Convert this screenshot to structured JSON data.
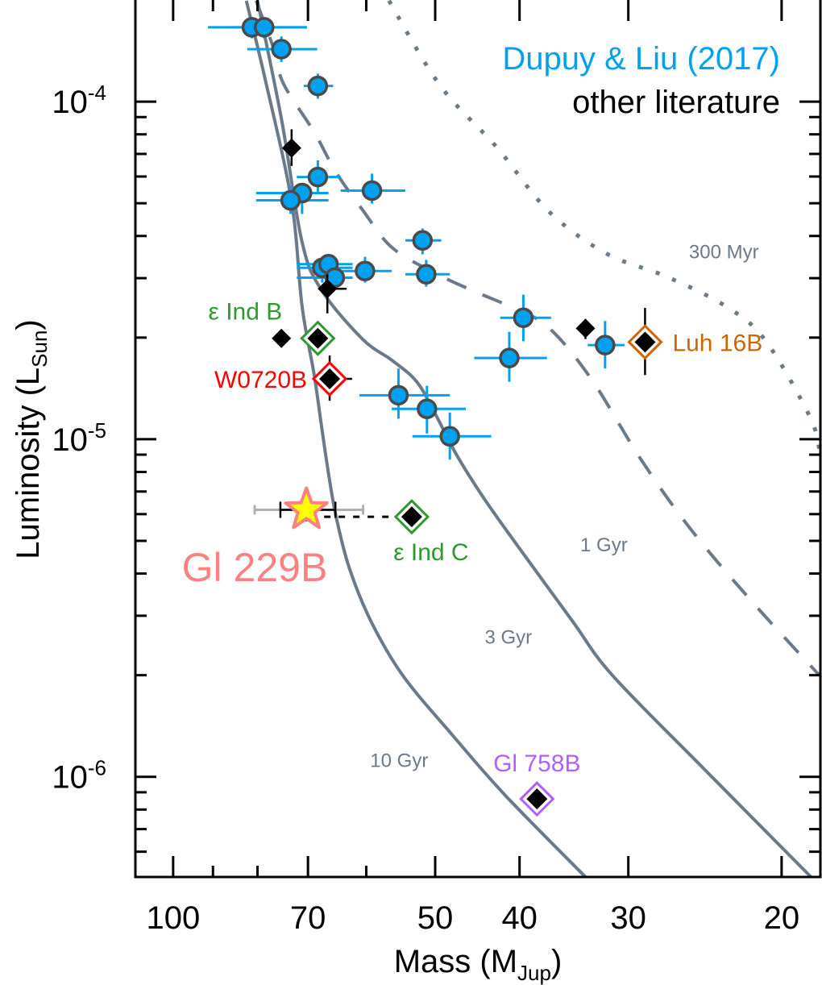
{
  "chart_data": {
    "type": "scatter",
    "xlabel": "Mass (M",
    "xlabel_sub": "Jup",
    "xlabel_end": ")",
    "ylabel": "Luminosity (L",
    "ylabel_sub": "Sun",
    "ylabel_end": ")",
    "x_scale": "log",
    "y_scale": "log",
    "x_reversed": true,
    "xlim": [
      110.5,
      18.05
    ],
    "ylim": [
      5.05e-07,
      0.0002
    ],
    "grid": false,
    "x_ticks_major": [
      {
        "value": 100,
        "label": "100"
      },
      {
        "value": 70,
        "label": "70"
      },
      {
        "value": 50,
        "label": "50"
      },
      {
        "value": 40,
        "label": "40"
      },
      {
        "value": 30,
        "label": "30"
      },
      {
        "value": 20,
        "label": "20"
      }
    ],
    "x_ticks_minor": [
      90,
      80,
      60
    ],
    "y_ticks_major": [
      {
        "value": 0.0001,
        "base": "10",
        "exp": "-4"
      },
      {
        "value": 1e-05,
        "base": "10",
        "exp": "-5"
      },
      {
        "value": 1e-06,
        "base": "10",
        "exp": "-6"
      }
    ],
    "y_ticks_minor": [
      9e-05,
      8e-05,
      7e-05,
      6e-05,
      5e-05,
      4e-05,
      3e-05,
      2e-05,
      9e-06,
      8e-06,
      7e-06,
      6e-06,
      5e-06,
      4e-06,
      3e-06,
      2e-06,
      9e-07,
      8e-07,
      7e-07,
      6e-07
    ],
    "legend": {
      "placement": "top-right",
      "entries": [
        {
          "label": "Dupuy & Liu (2017)",
          "color": "#00a2f0"
        },
        {
          "label": "other literature",
          "color": "#000000"
        }
      ]
    },
    "isochrones": [
      {
        "name": "10 Gyr",
        "style": "solid",
        "color": "#6b7a88",
        "label_at": [
          55,
          1.07e-06
        ],
        "points": [
          [
            82.4,
            0.000199
          ],
          [
            78.3,
            0.000115
          ],
          [
            73.1,
            5.05e-05
          ],
          [
            71.1,
            2.47e-05
          ],
          [
            68.9,
            1.565e-05
          ],
          [
            67.5,
            1.083e-05
          ],
          [
            66.3,
            7.92e-06
          ],
          [
            65.0,
            5.92e-06
          ],
          [
            62.8,
            4.18e-06
          ],
          [
            59.3,
            2.9e-06
          ],
          [
            54.5,
            2e-06
          ],
          [
            47.9,
            1.34e-06
          ],
          [
            41.5,
            8.79e-07
          ],
          [
            33.6,
            5.05e-07
          ]
        ]
      },
      {
        "name": "3 Gyr",
        "style": "solid",
        "color": "#6b7a88",
        "label_at": [
          41.2,
          2.48e-06
        ],
        "points": [
          [
            80.0,
            0.000199
          ],
          [
            75.0,
            8.74e-05
          ],
          [
            71.1,
            3.83e-05
          ],
          [
            67.5,
            2.76e-05
          ],
          [
            60.6,
            1.98e-05
          ],
          [
            56.0,
            1.71e-05
          ],
          [
            52.5,
            1.48e-05
          ],
          [
            50.0,
            1.19e-05
          ],
          [
            47.3,
            9.03e-06
          ],
          [
            44.0,
            6.71e-06
          ],
          [
            40.2,
            4.83e-06
          ],
          [
            34.8,
            2.9e-06
          ],
          [
            31.3,
            2e-06
          ],
          [
            24.6,
            1.06e-06
          ],
          [
            18.5,
            5.05e-07
          ]
        ]
      },
      {
        "name": "1 Gyr",
        "style": "dashed",
        "color": "#6b7a88",
        "label_at": [
          32.0,
          4.65e-06
        ],
        "points": [
          [
            80.3,
            0.000199
          ],
          [
            76.6,
            0.000143
          ],
          [
            74.7,
            0.000113
          ],
          [
            68.9,
            8.14e-05
          ],
          [
            65.0,
            6.18e-05
          ],
          [
            60.6,
            4.78e-05
          ],
          [
            56.0,
            3.69e-05
          ],
          [
            49.7,
            3.08e-05
          ],
          [
            44.9,
            2.73e-05
          ],
          [
            41.0,
            2.47e-05
          ],
          [
            37.1,
            2.15e-05
          ],
          [
            33.1,
            1.51e-05
          ],
          [
            29.0,
            8.69e-06
          ],
          [
            25.4,
            5.39e-06
          ],
          [
            21.6,
            3.29e-06
          ],
          [
            18.1,
            2e-06
          ]
        ]
      },
      {
        "name": "300 Myr",
        "style": "dotted",
        "color": "#6b7a88",
        "label_at": [
          23.3,
          3.43e-05
        ],
        "points": [
          [
            56.5,
            0.000199
          ],
          [
            49.4,
            0.000112
          ],
          [
            42.5,
            7.33e-05
          ],
          [
            37.0,
            4.72e-05
          ],
          [
            31.8,
            3.55e-05
          ],
          [
            27.1,
            3.03e-05
          ],
          [
            23.2,
            2.48e-05
          ],
          [
            20.9,
            1.97e-05
          ],
          [
            18.6,
            1.18e-05
          ],
          [
            18.1,
            9.39e-06
          ]
        ]
      }
    ],
    "series": [
      {
        "name": "Dupuy & Liu (2017)",
        "marker": "circle",
        "color": "#00a2f0",
        "edge_color": "#4a4a4a",
        "points": [
          {
            "mass": 81.2,
            "lum": 0.000166,
            "mass_err": [
              91.2,
              70.2
            ],
            "lum_err": [
              0.000178,
              0.000154
            ]
          },
          {
            "mass": 78.6,
            "lum": 0.000166,
            "mass_err": [
              85.2,
              70.2
            ],
            "lum_err": [
              0.000178,
              0.000154
            ]
          },
          {
            "mass": 75.1,
            "lum": 0.000143,
            "mass_err": [
              82.2,
              68.3
            ],
            "lum_err": [
              0.000156,
              0.000131
            ]
          },
          {
            "mass": 68.2,
            "lum": 0.0001113,
            "mass_err": [
              70.8,
              65.5
            ],
            "lum_err": [
              0.000121,
              0.000102
            ]
          },
          {
            "mass": 68.2,
            "lum": 5.98e-05,
            "mass_err": [
              72.1,
              64.2
            ],
            "lum_err": [
              6.7e-05,
              5.33e-05
            ]
          },
          {
            "mass": 71.1,
            "lum": 5.36e-05,
            "mass_err": [
              80.3,
              66.3
            ],
            "lum_err": [
              5.63e-05,
              4.65e-05
            ]
          },
          {
            "mass": 73.3,
            "lum": 5.1e-05,
            "mass_err": [
              80.3,
              66.3
            ],
            "lum_err": [
              5.63e-05,
              4.65e-05
            ]
          },
          {
            "mass": 59.1,
            "lum": 5.45e-05,
            "mass_err": [
              64.2,
              54.1
            ],
            "lum_err": [
              6.12e-05,
              4.99e-05
            ]
          },
          {
            "mass": 51.7,
            "lum": 3.88e-05,
            "mass_err": [
              54.1,
              49.2
            ],
            "lum_err": [
              4.21e-05,
              3.53e-05
            ]
          },
          {
            "mass": 67.4,
            "lum": 3.22e-05,
            "mass_err": [
              72.1,
              62.2
            ],
            "lum_err": [
              3.47e-05,
              2.91e-05
            ]
          },
          {
            "mass": 66.3,
            "lum": 3.3e-05,
            "mass_err": [
              72.1,
              62.2
            ],
            "lum_err": [
              3.53e-05,
              3.08e-05
            ]
          },
          {
            "mass": 65.2,
            "lum": 3.01e-05,
            "mass_err": [
              72.1,
              62.2
            ],
            "lum_err": [
              3.3e-05,
              2.83e-05
            ]
          },
          {
            "mass": 60.2,
            "lum": 3.15e-05,
            "mass_err": [
              64.6,
              56.1
            ],
            "lum_err": [
              3.47e-05,
              2.91e-05
            ]
          },
          {
            "mass": 51.2,
            "lum": 3.08e-05,
            "mass_err": [
              54.1,
              48.1
            ],
            "lum_err": [
              3.4e-05,
              2.83e-05
            ]
          },
          {
            "mass": 39.6,
            "lum": 2.29e-05,
            "mass_err": [
              42.1,
              36.8
            ],
            "lum_err": [
              2.68e-05,
              1.95e-05
            ]
          },
          {
            "mass": 41.1,
            "lum": 1.74e-05,
            "mass_err": [
              45.1,
              37.2
            ],
            "lum_err": [
              2.08e-05,
              1.48e-05
            ]
          },
          {
            "mass": 31.9,
            "lum": 1.9e-05,
            "mass_err": [
              33.4,
              30.3
            ],
            "lum_err": [
              2.24e-05,
              1.62e-05
            ]
          },
          {
            "mass": 55.1,
            "lum": 1.35e-05,
            "mass_err": [
              61.1,
              48.1
            ],
            "lum_err": [
              1.62e-05,
              1.15e-05
            ]
          },
          {
            "mass": 51.1,
            "lum": 1.23e-05,
            "mass_err": [
              56.1,
              46.1
            ],
            "lum_err": [
              1.44e-05,
              1.04e-05
            ]
          },
          {
            "mass": 48.1,
            "lum": 1.02e-05,
            "mass_err": [
              53.1,
              43.1
            ],
            "lum_err": [
              1.2e-05,
              8.7e-06
            ]
          }
        ]
      },
      {
        "name": "other literature",
        "marker": "diamond",
        "color": "#000000",
        "points": [
          {
            "mass": 73.1,
            "lum": 7.29e-05,
            "lum_err": [
              8.28e-05,
              6.45e-05
            ]
          },
          {
            "mass": 66.5,
            "lum": 2.79e-05,
            "mass_err": [
              68.1,
              63.2
            ],
            "lum_err": [
              3.08e-05,
              2.36e-05
            ]
          },
          {
            "mass": 75.1,
            "lum": 1.99e-05
          },
          {
            "mass": 33.6,
            "lum": 2.13e-05,
            "lum_err": [
              2.27e-05,
              1.98e-05
            ]
          },
          {
            "mass": 70.3,
            "lum": 5.89e-06,
            "small": true
          }
        ]
      }
    ],
    "named_objects": [
      {
        "name": "ε Ind B",
        "mass": 68.2,
        "lum": 1.99e-05,
        "color": "#2e9a2e",
        "mass_err": [
          71.4,
          68.2
        ],
        "label_pos": "above-left"
      },
      {
        "name": "W0720B",
        "mass": 66.1,
        "lum": 1.51e-05,
        "color": "#ff0000",
        "mass_err": [
          69.2,
          62.3
        ],
        "lum_err": [
          1.77e-05,
          1.3e-05
        ],
        "label_pos": "left"
      },
      {
        "name": "Luh 16B",
        "mass": 28.7,
        "lum": 1.94e-05,
        "color": "#cc6600",
        "lum_err": [
          2.45e-05,
          1.55e-05
        ],
        "label_pos": "right"
      },
      {
        "name": "ε Ind C",
        "mass": 53.2,
        "lum": 5.89e-06,
        "color": "#2e9a2e",
        "label_pos": "below"
      },
      {
        "name": "Gl 758B",
        "mass": 38.2,
        "lum": 8.6e-07,
        "color": "#b060ff",
        "label_pos": "above"
      }
    ],
    "highlight": {
      "name": "Gl 229B",
      "mass": 70.3,
      "lum": 6.18e-06,
      "marker": "star",
      "fill": "#ffff00",
      "edge": "#ff8080",
      "label_color": "#ff8080",
      "mass_err_wide": [
        80.6,
        60.5
      ],
      "mass_err_wide_color": "#b0b0b0",
      "mass_err_narrow": [
        75.3,
        65.1
      ],
      "connector_to": "ε Ind C",
      "connector_lum": 5.89e-06
    }
  }
}
